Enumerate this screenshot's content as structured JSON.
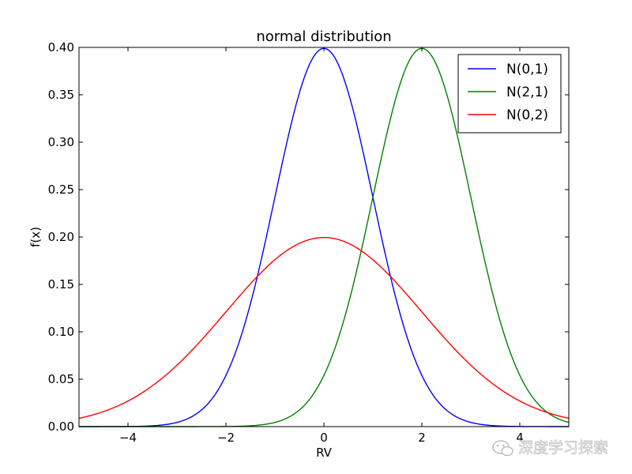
{
  "chart_data": {
    "type": "line",
    "title": "normal distribution",
    "xlabel": "RV",
    "ylabel": "f(x)",
    "xlim": [
      -5,
      5
    ],
    "ylim": [
      0.0,
      0.4
    ],
    "grid": false,
    "legend_position": "top-right",
    "x_ticks": [
      -4,
      -2,
      0,
      2,
      4
    ],
    "x_tick_labels": [
      "−4",
      "−2",
      "0",
      "2",
      "4"
    ],
    "y_ticks": [
      0.0,
      0.05,
      0.1,
      0.15,
      0.2,
      0.25,
      0.3,
      0.35,
      0.4
    ],
    "y_tick_labels": [
      "0.00",
      "0.05",
      "0.10",
      "0.15",
      "0.20",
      "0.25",
      "0.30",
      "0.35",
      "0.40"
    ],
    "series": [
      {
        "name": "N(0,1)",
        "mean": 0,
        "std": 1,
        "color": "#0000ff"
      },
      {
        "name": "N(2,1)",
        "mean": 2,
        "std": 1,
        "color": "#008000"
      },
      {
        "name": "N(0,2)",
        "mean": 0,
        "std": 2,
        "color": "#ff0000"
      }
    ]
  },
  "watermark": {
    "text": "深度学习探索",
    "icon": "wechat-icon"
  }
}
